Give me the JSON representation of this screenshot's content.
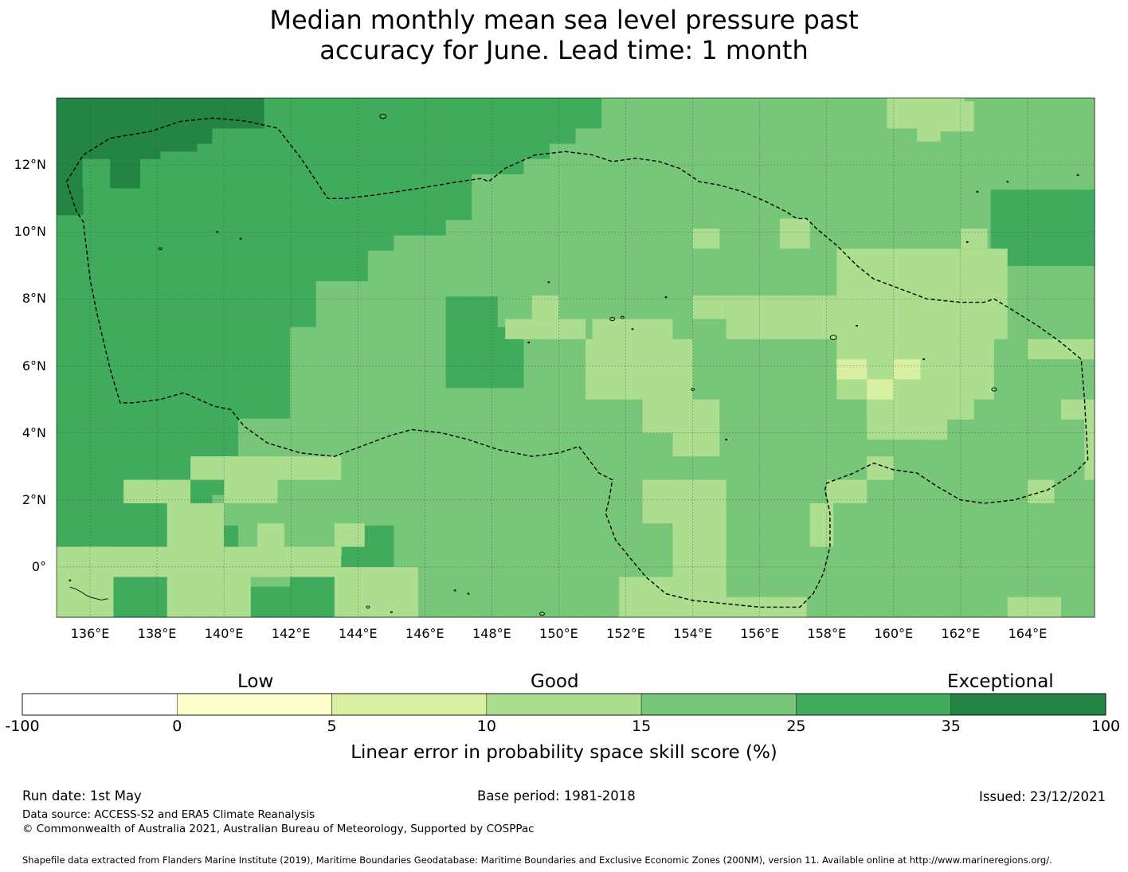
{
  "title": {
    "line1": "Median monthly mean sea level pressure past",
    "line2": "accuracy for June. Lead time: 1 month"
  },
  "map": {
    "lon_range": [
      135.0,
      166.0
    ],
    "lat_range": [
      -1.5,
      14.0
    ],
    "x_ticks": [
      "136°E",
      "138°E",
      "140°E",
      "142°E",
      "144°E",
      "146°E",
      "148°E",
      "150°E",
      "152°E",
      "154°E",
      "156°E",
      "158°E",
      "160°E",
      "162°E",
      "164°E"
    ],
    "x_tick_values": [
      136,
      138,
      140,
      142,
      144,
      146,
      148,
      150,
      152,
      154,
      156,
      158,
      160,
      162,
      164
    ],
    "y_ticks": [
      "12°N",
      "10°N",
      "8°N",
      "6°N",
      "4°N",
      "2°N",
      "0°"
    ],
    "y_tick_values": [
      12,
      10,
      8,
      6,
      4,
      2,
      0
    ],
    "cell_size_deg": 0.833,
    "grid_color": "#2a5a2a",
    "eez_boundary_color": "#000000",
    "eez_boundary": [
      [
        135.3,
        11.5
      ],
      [
        135.8,
        12.3
      ],
      [
        136.6,
        12.8
      ],
      [
        137.8,
        13.0
      ],
      [
        138.7,
        13.3
      ],
      [
        139.7,
        13.4
      ],
      [
        140.7,
        13.3
      ],
      [
        141.6,
        13.1
      ],
      [
        142.3,
        12.2
      ],
      [
        143.1,
        11.0
      ],
      [
        143.6,
        11.0
      ],
      [
        144.5,
        11.1
      ],
      [
        145.8,
        11.3
      ],
      [
        147.0,
        11.5
      ],
      [
        147.7,
        11.6
      ],
      [
        147.9,
        11.5
      ],
      [
        148.4,
        11.9
      ],
      [
        149.3,
        12.3
      ],
      [
        150.2,
        12.4
      ],
      [
        151.0,
        12.3
      ],
      [
        151.6,
        12.1
      ],
      [
        152.3,
        12.2
      ],
      [
        153.0,
        12.1
      ],
      [
        153.6,
        11.9
      ],
      [
        154.2,
        11.5
      ],
      [
        154.8,
        11.4
      ],
      [
        155.5,
        11.2
      ],
      [
        156.2,
        10.9
      ],
      [
        156.8,
        10.6
      ],
      [
        157.1,
        10.4
      ],
      [
        157.4,
        10.4
      ],
      [
        157.7,
        10.1
      ],
      [
        158.3,
        9.6
      ],
      [
        158.9,
        9.0
      ],
      [
        159.4,
        8.6
      ],
      [
        160.2,
        8.3
      ],
      [
        161.0,
        8.0
      ],
      [
        162.0,
        7.9
      ],
      [
        162.7,
        7.9
      ],
      [
        163.0,
        8.0
      ],
      [
        163.5,
        7.7
      ],
      [
        164.3,
        7.2
      ],
      [
        165.0,
        6.7
      ],
      [
        165.6,
        6.2
      ],
      [
        165.7,
        5.0
      ],
      [
        165.8,
        3.2
      ],
      [
        165.4,
        2.8
      ],
      [
        164.6,
        2.3
      ],
      [
        163.6,
        2.0
      ],
      [
        162.7,
        1.9
      ],
      [
        162.0,
        2.0
      ],
      [
        161.3,
        2.4
      ],
      [
        160.7,
        2.8
      ],
      [
        160.0,
        2.9
      ],
      [
        159.4,
        3.1
      ],
      [
        158.8,
        2.8
      ],
      [
        158.0,
        2.5
      ],
      [
        157.95,
        2.3
      ],
      [
        158.1,
        1.6
      ],
      [
        158.1,
        0.6
      ],
      [
        157.9,
        -0.2
      ],
      [
        157.6,
        -0.8
      ],
      [
        157.2,
        -1.2
      ],
      [
        156.0,
        -1.2
      ],
      [
        154.0,
        -1.0
      ],
      [
        153.2,
        -0.8
      ],
      [
        152.6,
        -0.3
      ],
      [
        152.1,
        0.3
      ],
      [
        151.7,
        0.8
      ],
      [
        151.4,
        1.6
      ],
      [
        151.5,
        2.0
      ],
      [
        151.6,
        2.6
      ],
      [
        151.2,
        2.8
      ],
      [
        150.9,
        3.2
      ],
      [
        150.6,
        3.6
      ],
      [
        150.0,
        3.4
      ],
      [
        149.2,
        3.3
      ],
      [
        148.2,
        3.5
      ],
      [
        147.3,
        3.8
      ],
      [
        146.5,
        4.0
      ],
      [
        145.6,
        4.1
      ],
      [
        144.9,
        3.9
      ],
      [
        144.1,
        3.6
      ],
      [
        143.3,
        3.3
      ],
      [
        142.3,
        3.4
      ],
      [
        141.3,
        3.7
      ],
      [
        140.6,
        4.2
      ],
      [
        140.2,
        4.7
      ],
      [
        139.7,
        4.8
      ],
      [
        138.8,
        5.2
      ],
      [
        138.1,
        5.0
      ],
      [
        137.3,
        4.9
      ],
      [
        136.9,
        4.9
      ],
      [
        136.6,
        5.9
      ],
      [
        136.2,
        7.6
      ],
      [
        136.0,
        8.6
      ],
      [
        135.8,
        10.3
      ],
      [
        135.6,
        10.6
      ],
      [
        135.3,
        11.5
      ]
    ]
  },
  "colorbar": {
    "category_labels": [
      "Low",
      "Good",
      "Exceptional"
    ],
    "segments": [
      {
        "from": -100,
        "to": 0,
        "color": "#ffffff"
      },
      {
        "from": 0,
        "to": 5,
        "color": "#ffffcc"
      },
      {
        "from": 5,
        "to": 10,
        "color": "#d9f0a3"
      },
      {
        "from": 10,
        "to": 15,
        "color": "#addd8e"
      },
      {
        "from": 15,
        "to": 25,
        "color": "#78c679"
      },
      {
        "from": 25,
        "to": 35,
        "color": "#41ab5d"
      },
      {
        "from": 35,
        "to": 100,
        "color": "#238443"
      }
    ],
    "tick_labels": [
      "-100",
      "0",
      "5",
      "10",
      "15",
      "25",
      "35",
      "100"
    ],
    "label": "Linear error in probability space skill score (%)"
  },
  "footer": {
    "run_date": "Run date: 1st May",
    "base_period": "Base period: 1981-2018",
    "issued": "Issued: 23/12/2021",
    "data_source": "Data source: ACCESS-S2 and ERA5 Climate Reanalysis",
    "copyright": "© Commonwealth of Australia 2021, Australian Bureau of Meteorology, Supported by COSPPac",
    "shapefile": "Shapefile data extracted from Flanders Marine Institute (2019), Maritime Boundaries Geodatabase: Maritime Boundaries and Exclusive Economic Zones (200NM), version 11. Available online at http://www.marineregions.org/."
  }
}
